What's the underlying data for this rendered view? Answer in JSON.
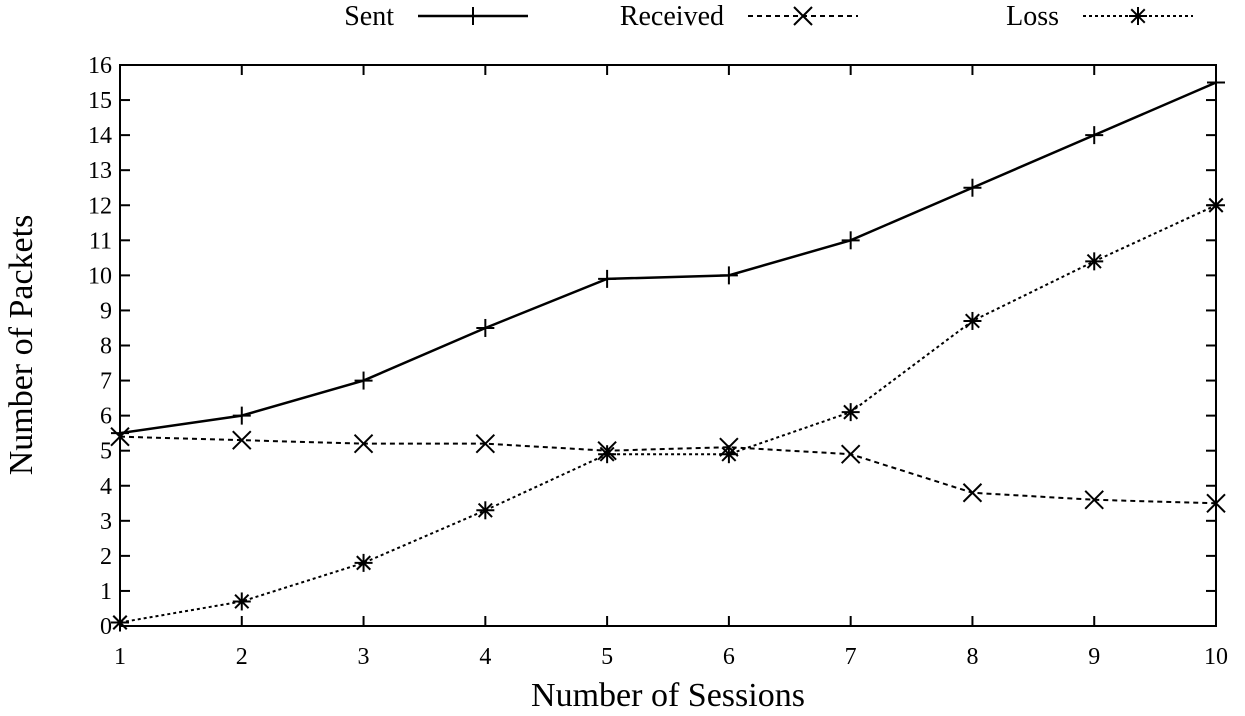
{
  "chart_data": {
    "type": "line",
    "xlabel": "Number of Sessions",
    "ylabel": "Number of Packets",
    "x": [
      1,
      2,
      3,
      4,
      5,
      6,
      7,
      8,
      9,
      10
    ],
    "xlim": [
      1,
      10
    ],
    "ylim": [
      0,
      16
    ],
    "xticks": [
      "1",
      "2",
      "3",
      "4",
      "5",
      "6",
      "7",
      "8",
      "9",
      "10"
    ],
    "yticks": [
      "0",
      "1",
      "2",
      "3",
      "4",
      "5",
      "6",
      "7",
      "8",
      "9",
      "10",
      "11",
      "12",
      "13",
      "14",
      "15",
      "16"
    ],
    "grid": false,
    "legend_position": "top",
    "series": [
      {
        "name": "Sent",
        "marker": "plus",
        "line_style": "solid",
        "color": "#000000",
        "values": [
          5.5,
          6.0,
          7.0,
          8.5,
          9.9,
          10.0,
          11.0,
          12.5,
          14.0,
          15.5
        ]
      },
      {
        "name": "Received",
        "marker": "x",
        "line_style": "dashed",
        "color": "#000000",
        "values": [
          5.4,
          5.3,
          5.2,
          5.2,
          5.0,
          5.1,
          4.9,
          3.8,
          3.6,
          3.5
        ]
      },
      {
        "name": "Loss",
        "marker": "star",
        "line_style": "dotted",
        "color": "#000000",
        "values": [
          0.1,
          0.7,
          1.8,
          3.3,
          4.9,
          4.9,
          6.1,
          8.7,
          10.4,
          12.0
        ]
      }
    ]
  }
}
